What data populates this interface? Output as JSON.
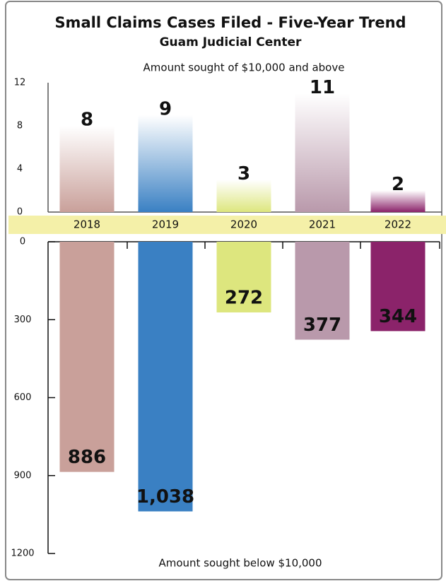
{
  "chart_data": [
    {
      "type": "bar",
      "title": "Small Claims Cases Filed - Five-Year Trend",
      "subtitle": "Guam Judicial Center",
      "label": "Amount sought of $10,000 and above",
      "categories": [
        "2018",
        "2019",
        "2020",
        "2021",
        "2022"
      ],
      "values": [
        8,
        9,
        3,
        11,
        2
      ],
      "colors": [
        "#c9a09a",
        "#3a80c3",
        "#dde67e",
        "#b999ab",
        "#8b236a"
      ],
      "ylim": [
        0,
        12
      ],
      "yticks": [
        0,
        4,
        8,
        12
      ]
    },
    {
      "type": "bar",
      "label": "Amount sought below $10,000",
      "values": [
        886,
        1038,
        272,
        377,
        344
      ],
      "value_labels": [
        "886",
        "1,038",
        "272",
        "377",
        "344"
      ],
      "colors": [
        "#c9a09a",
        "#3a80c3",
        "#dde67e",
        "#b999ab",
        "#8b236a"
      ],
      "ylim": [
        0,
        1200
      ],
      "yticks": [
        0,
        300,
        600,
        900,
        1200
      ]
    }
  ]
}
